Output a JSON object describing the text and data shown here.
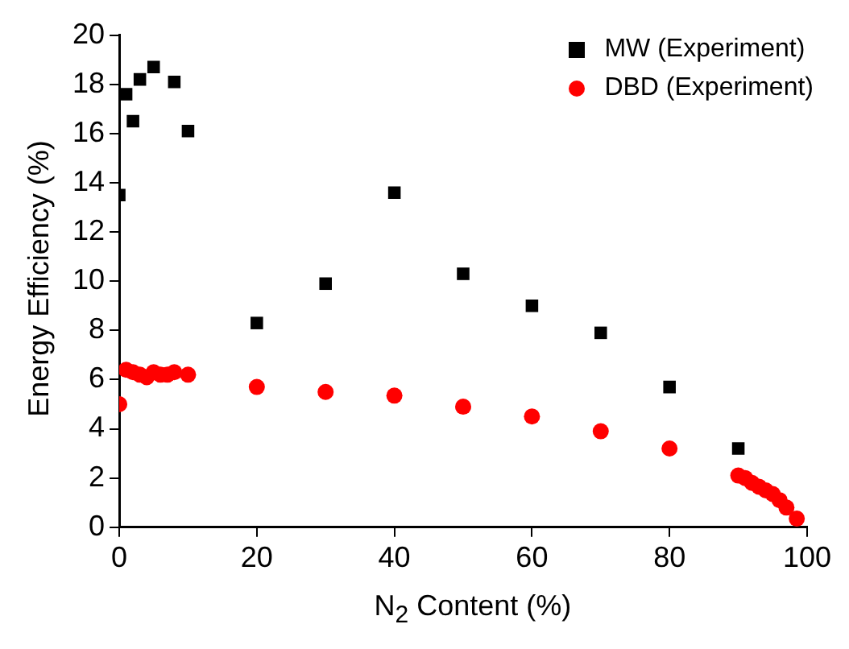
{
  "chart_data": {
    "type": "scatter",
    "xlabel": "N$_{2}$ Content (%)",
    "ylabel": "Energy Efficiency (%)",
    "xlim": [
      0,
      100
    ],
    "xticks": [
      0,
      20,
      40,
      60,
      80,
      100
    ],
    "ylim": [
      0,
      20
    ],
    "yticks": [
      0,
      2,
      4,
      6,
      8,
      10,
      12,
      14,
      16,
      18,
      20
    ],
    "grid": false,
    "legend": "top right",
    "series": [
      {
        "name": "MW (Experiment)",
        "color": "#000000",
        "marker": "square",
        "x": [
          0,
          1,
          2,
          3,
          5,
          8,
          10,
          20,
          30,
          40,
          50,
          60,
          70,
          80,
          90
        ],
        "values": [
          13.5,
          17.6,
          16.5,
          18.2,
          18.7,
          18.1,
          16.1,
          8.3,
          9.9,
          13.6,
          10.3,
          9.0,
          7.9,
          5.7,
          3.2
        ]
      },
      {
        "name": "DBD (Experiment)",
        "color": "#ff0000",
        "marker": "circle",
        "x": [
          0,
          1,
          2,
          3,
          4,
          5,
          6,
          7,
          8,
          10,
          20,
          30,
          40,
          50,
          60,
          70,
          80,
          90,
          91,
          92,
          93,
          94,
          95,
          96,
          97,
          98.5
        ],
        "values": [
          5.0,
          6.4,
          6.3,
          6.2,
          6.1,
          6.3,
          6.2,
          6.2,
          6.3,
          6.2,
          5.7,
          5.5,
          5.35,
          4.9,
          4.5,
          3.9,
          3.2,
          2.1,
          2.0,
          1.8,
          1.65,
          1.5,
          1.35,
          1.1,
          0.8,
          0.35
        ]
      }
    ]
  }
}
